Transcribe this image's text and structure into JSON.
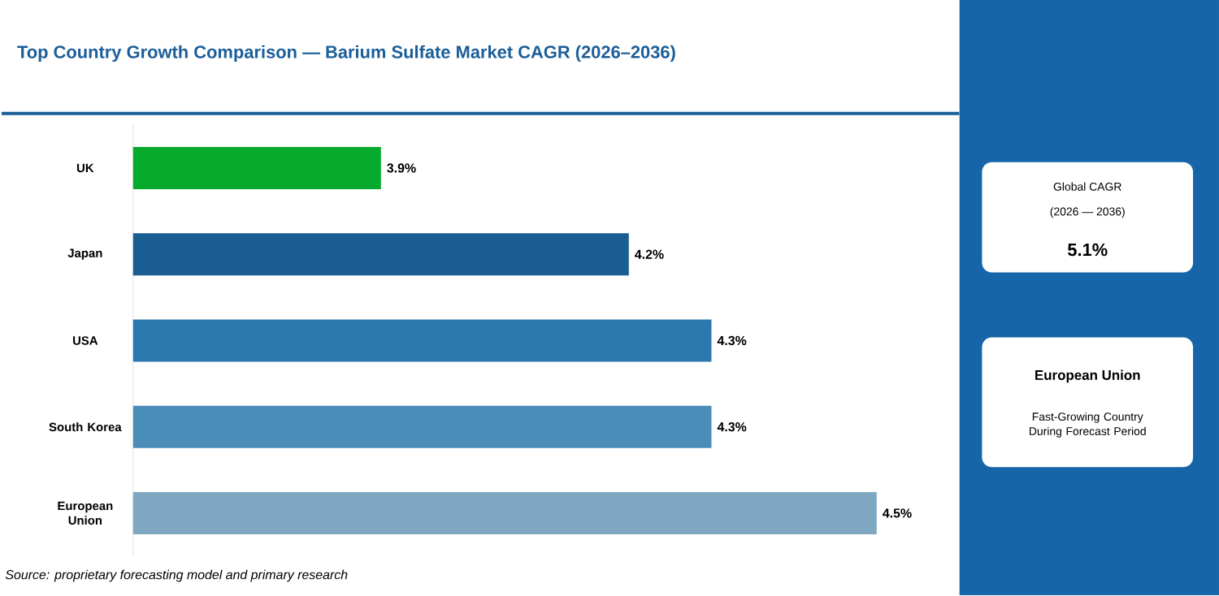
{
  "chart_data": {
    "type": "bar",
    "orientation": "horizontal",
    "title": "Top Country Growth Comparison — Barium Sulfate Market CAGR (2026–2036)",
    "categories": [
      "UK",
      "Japan",
      "USA",
      "South Korea",
      "European Union"
    ],
    "values": [
      3.9,
      4.2,
      4.3,
      4.3,
      4.5
    ],
    "colors": [
      "#06ab2e",
      "#1a5e91",
      "#2a78ae",
      "#4a8db9",
      "#7fa7c2"
    ],
    "value_labels": [
      "3.9%",
      "4.2%",
      "4.3%",
      "4.3%",
      "4.5%"
    ],
    "xlim": [
      3.6,
      4.6
    ],
    "tick_labels": "y",
    "annotations": [
      "Global CAGR",
      "(2026 — 2036)",
      "5.1%",
      "European Union",
      "Fast-Growing Country During Forecast Period",
      "Source: proprietary forecasting model and primary research"
    ]
  }
}
